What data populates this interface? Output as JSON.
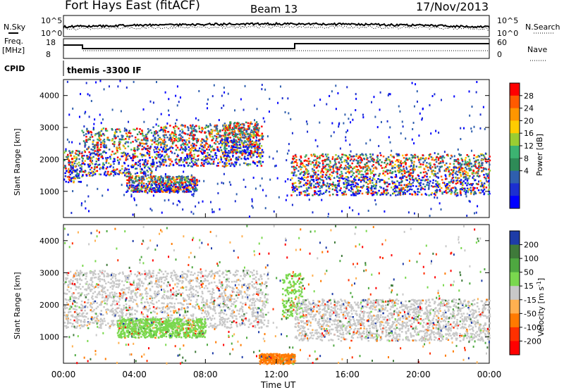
{
  "header": {
    "site": "Fort Hays East (fitACF)",
    "beam": "Beam 13",
    "date": "17/Nov/2013"
  },
  "summary": {
    "nsky_label": "N.Sky",
    "nsky_ticks": [
      "10^5",
      "10^0"
    ],
    "nsearch_label": "N.Search",
    "nsearch_ticks": [
      "10^5",
      "10^0"
    ],
    "freq_label": "Freq.",
    "freq_unit": "[MHz]",
    "freq_ticks": [
      "18",
      "8"
    ],
    "nave_label": "Nave",
    "nave_ticks": [
      "60",
      "0"
    ],
    "cpid_label": "CPID",
    "cpid_text": "themis -3300 IF"
  },
  "x_axis": {
    "label": "Time UT",
    "ticks": [
      "00:00",
      "04:00",
      "08:00",
      "12:00",
      "16:00",
      "20:00",
      "00:00"
    ]
  },
  "chart_data": [
    {
      "type": "heatmap",
      "panel": "power",
      "xlabel": "Time UT",
      "ylabel": "Slant Range [km]",
      "x_range_hours": [
        0,
        24
      ],
      "ylim": [
        180,
        4500
      ],
      "y_ticks": [
        1000,
        2000,
        3000,
        4000
      ],
      "colorbar": {
        "label": "Power [dB]",
        "ticks": [
          "28",
          "24",
          "20",
          "16",
          "12",
          "8",
          "4"
        ],
        "colors": [
          "#ff0000",
          "#ff5a00",
          "#ff9600",
          "#ffcc00",
          "#9acd32",
          "#3cb371",
          "#2e8b57",
          "#2f5fae",
          "#1c2fd0",
          "#0000ff"
        ]
      },
      "features": [
        {
          "name": "morning band",
          "hours": [
            0.0,
            1.0
          ],
          "range_km": [
            1300,
            2300
          ]
        },
        {
          "name": "rising band",
          "hours": [
            1.0,
            5.0
          ],
          "range_km": [
            1500,
            3000
          ]
        },
        {
          "name": "arc",
          "hours": [
            5.0,
            11.2
          ],
          "range_km": [
            1800,
            3100
          ]
        },
        {
          "name": "patch",
          "hours": [
            9.0,
            11.0
          ],
          "range_km": [
            2200,
            3200
          ]
        },
        {
          "name": "low patch",
          "hours": [
            3.5,
            7.5
          ],
          "range_km": [
            1000,
            1500
          ]
        },
        {
          "name": "afternoon band",
          "hours": [
            12.8,
            24.0
          ],
          "range_km": [
            900,
            2200
          ]
        }
      ]
    },
    {
      "type": "heatmap",
      "panel": "velocity",
      "xlabel": "Time UT",
      "ylabel": "Slant Range [km]",
      "x_range_hours": [
        0,
        24
      ],
      "ylim": [
        180,
        4500
      ],
      "y_ticks": [
        1000,
        2000,
        3000,
        4000
      ],
      "colorbar": {
        "label": "Velocity [m s^-1]",
        "ticks": [
          "200",
          "100",
          "50",
          "15",
          "-15",
          "-50",
          "-100",
          "-200"
        ],
        "colors": [
          "#1e3ca8",
          "#3f7a3a",
          "#4ea840",
          "#7ad84e",
          "#c8c8c8",
          "#ffb050",
          "#ff7a00",
          "#ff3000",
          "#ff0000"
        ]
      },
      "features": [
        {
          "name": "ground scatter band",
          "hours": [
            0.0,
            11.5
          ],
          "range_km": [
            1300,
            3100
          ],
          "velocity": "-15 to 15"
        },
        {
          "name": "green patch",
          "hours": [
            3.0,
            8.0
          ],
          "range_km": [
            1000,
            1600
          ],
          "velocity": "15 to 100"
        },
        {
          "name": "green streak",
          "hours": [
            12.3,
            13.5
          ],
          "range_km": [
            1600,
            3000
          ],
          "velocity": "15 to 100"
        },
        {
          "name": "afternoon ground scatter",
          "hours": [
            13.0,
            24.0
          ],
          "range_km": [
            900,
            2200
          ],
          "velocity": "-15 to 15"
        },
        {
          "name": "near-range orange",
          "hours": [
            11.0,
            13.0
          ],
          "range_km": [
            180,
            500
          ],
          "velocity": "-100 to -50"
        }
      ]
    }
  ]
}
